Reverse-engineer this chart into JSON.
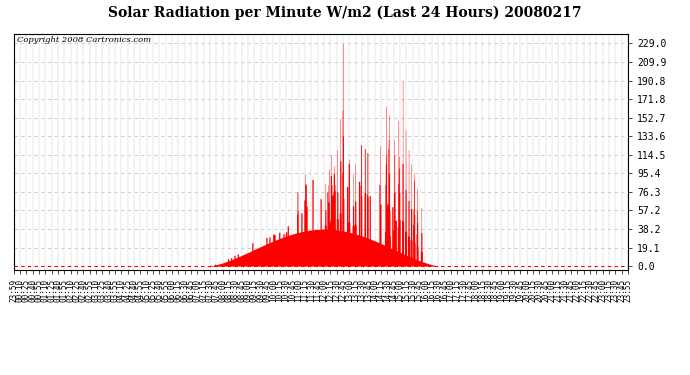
{
  "title": "Solar Radiation per Minute W/m2 (Last 24 Hours) 20080217",
  "copyright": "Copyright 2008 Cartronics.com",
  "background_color": "#ffffff",
  "plot_bg_color": "#ffffff",
  "bar_color": "#ff0000",
  "dashed_line_color": "#ff0000",
  "grid_color": "#c8c8c8",
  "y_ticks": [
    0.0,
    19.1,
    38.2,
    57.2,
    76.3,
    95.4,
    114.5,
    133.6,
    152.7,
    171.8,
    190.8,
    209.9,
    229.0
  ],
  "ylim": [
    0,
    239
  ],
  "x_labels": [
    "23:59",
    "00:10",
    "00:25",
    "00:40",
    "00:55",
    "01:10",
    "01:25",
    "01:40",
    "01:55",
    "02:10",
    "02:25",
    "02:40",
    "02:55",
    "03:10",
    "03:25",
    "03:40",
    "03:55",
    "04:10",
    "04:25",
    "04:40",
    "04:55",
    "05:10",
    "05:25",
    "05:40",
    "05:55",
    "06:00",
    "06:15",
    "06:30",
    "06:45",
    "07:00",
    "07:15",
    "07:30",
    "07:45",
    "08:00",
    "08:15",
    "08:30",
    "08:45",
    "09:00",
    "09:15",
    "09:30",
    "09:45",
    "10:00",
    "10:15",
    "10:30",
    "10:45",
    "11:00",
    "11:15",
    "11:30",
    "11:45",
    "12:00",
    "12:15",
    "12:30",
    "12:45",
    "13:00",
    "13:15",
    "13:30",
    "13:45",
    "14:00",
    "14:15",
    "14:30",
    "14:45",
    "15:00",
    "15:15",
    "15:30",
    "15:45",
    "16:00",
    "16:15",
    "16:30",
    "16:45",
    "17:00",
    "17:15",
    "17:30",
    "17:45",
    "18:00",
    "18:15",
    "18:30",
    "18:45",
    "19:00",
    "19:15",
    "19:30",
    "19:45",
    "20:00",
    "20:15",
    "20:30",
    "20:45",
    "21:00",
    "21:15",
    "21:30",
    "21:45",
    "22:00",
    "22:15",
    "22:30",
    "22:45",
    "23:00",
    "23:15",
    "23:30",
    "23:45",
    "23:55"
  ]
}
